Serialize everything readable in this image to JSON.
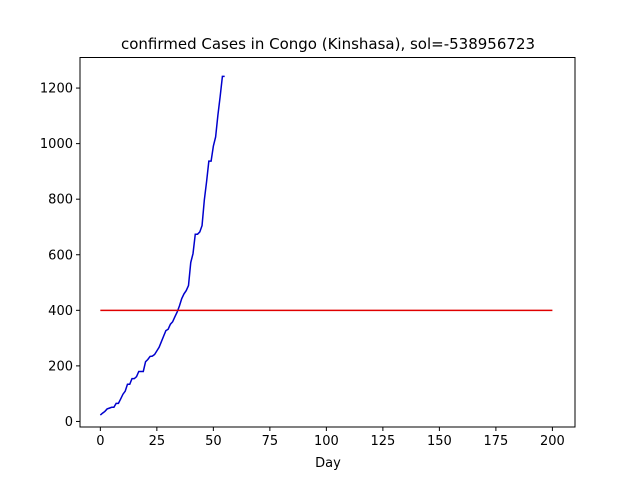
{
  "chart_data": {
    "type": "line",
    "title": "confirmed Cases in Congo (Kinshasa), sol=-538956723",
    "xlabel": "Day",
    "ylabel": "",
    "xlim": [
      -9,
      210
    ],
    "ylim": [
      -20,
      1310
    ],
    "xticks": [
      0,
      25,
      50,
      75,
      100,
      125,
      150,
      175,
      200
    ],
    "yticks": [
      0,
      200,
      400,
      600,
      800,
      1000,
      1200
    ],
    "grid": false,
    "series": [
      {
        "color": "#0000cd",
        "x": [
          0,
          1,
          2,
          3,
          4,
          5,
          6,
          7,
          8,
          9,
          10,
          11,
          12,
          13,
          14,
          15,
          16,
          17,
          18,
          19,
          20,
          21,
          22,
          23,
          24,
          25,
          26,
          27,
          28,
          29,
          30,
          31,
          32,
          33,
          34,
          35,
          36,
          37,
          38,
          39,
          40,
          41,
          42,
          43,
          44,
          45,
          46,
          47,
          48,
          49,
          50,
          51,
          52,
          53,
          54,
          55
        ],
        "y": [
          23,
          30,
          36,
          45,
          48,
          51,
          51,
          65,
          65,
          81,
          98,
          109,
          134,
          134,
          154,
          154,
          161,
          180,
          180,
          180,
          215,
          223,
          234,
          235,
          241,
          254,
          267,
          287,
          307,
          327,
          332,
          350,
          359,
          377,
          394,
          416,
          442,
          459,
          471,
          489,
          572,
          604,
          674,
          674,
          682,
          705,
          797,
          863,
          937,
          937,
          991,
          1024,
          1102,
          1169,
          1242,
          1242
        ]
      },
      {
        "color": "#e00000",
        "x": [
          0,
          200
        ],
        "y": [
          400,
          400
        ]
      }
    ]
  }
}
